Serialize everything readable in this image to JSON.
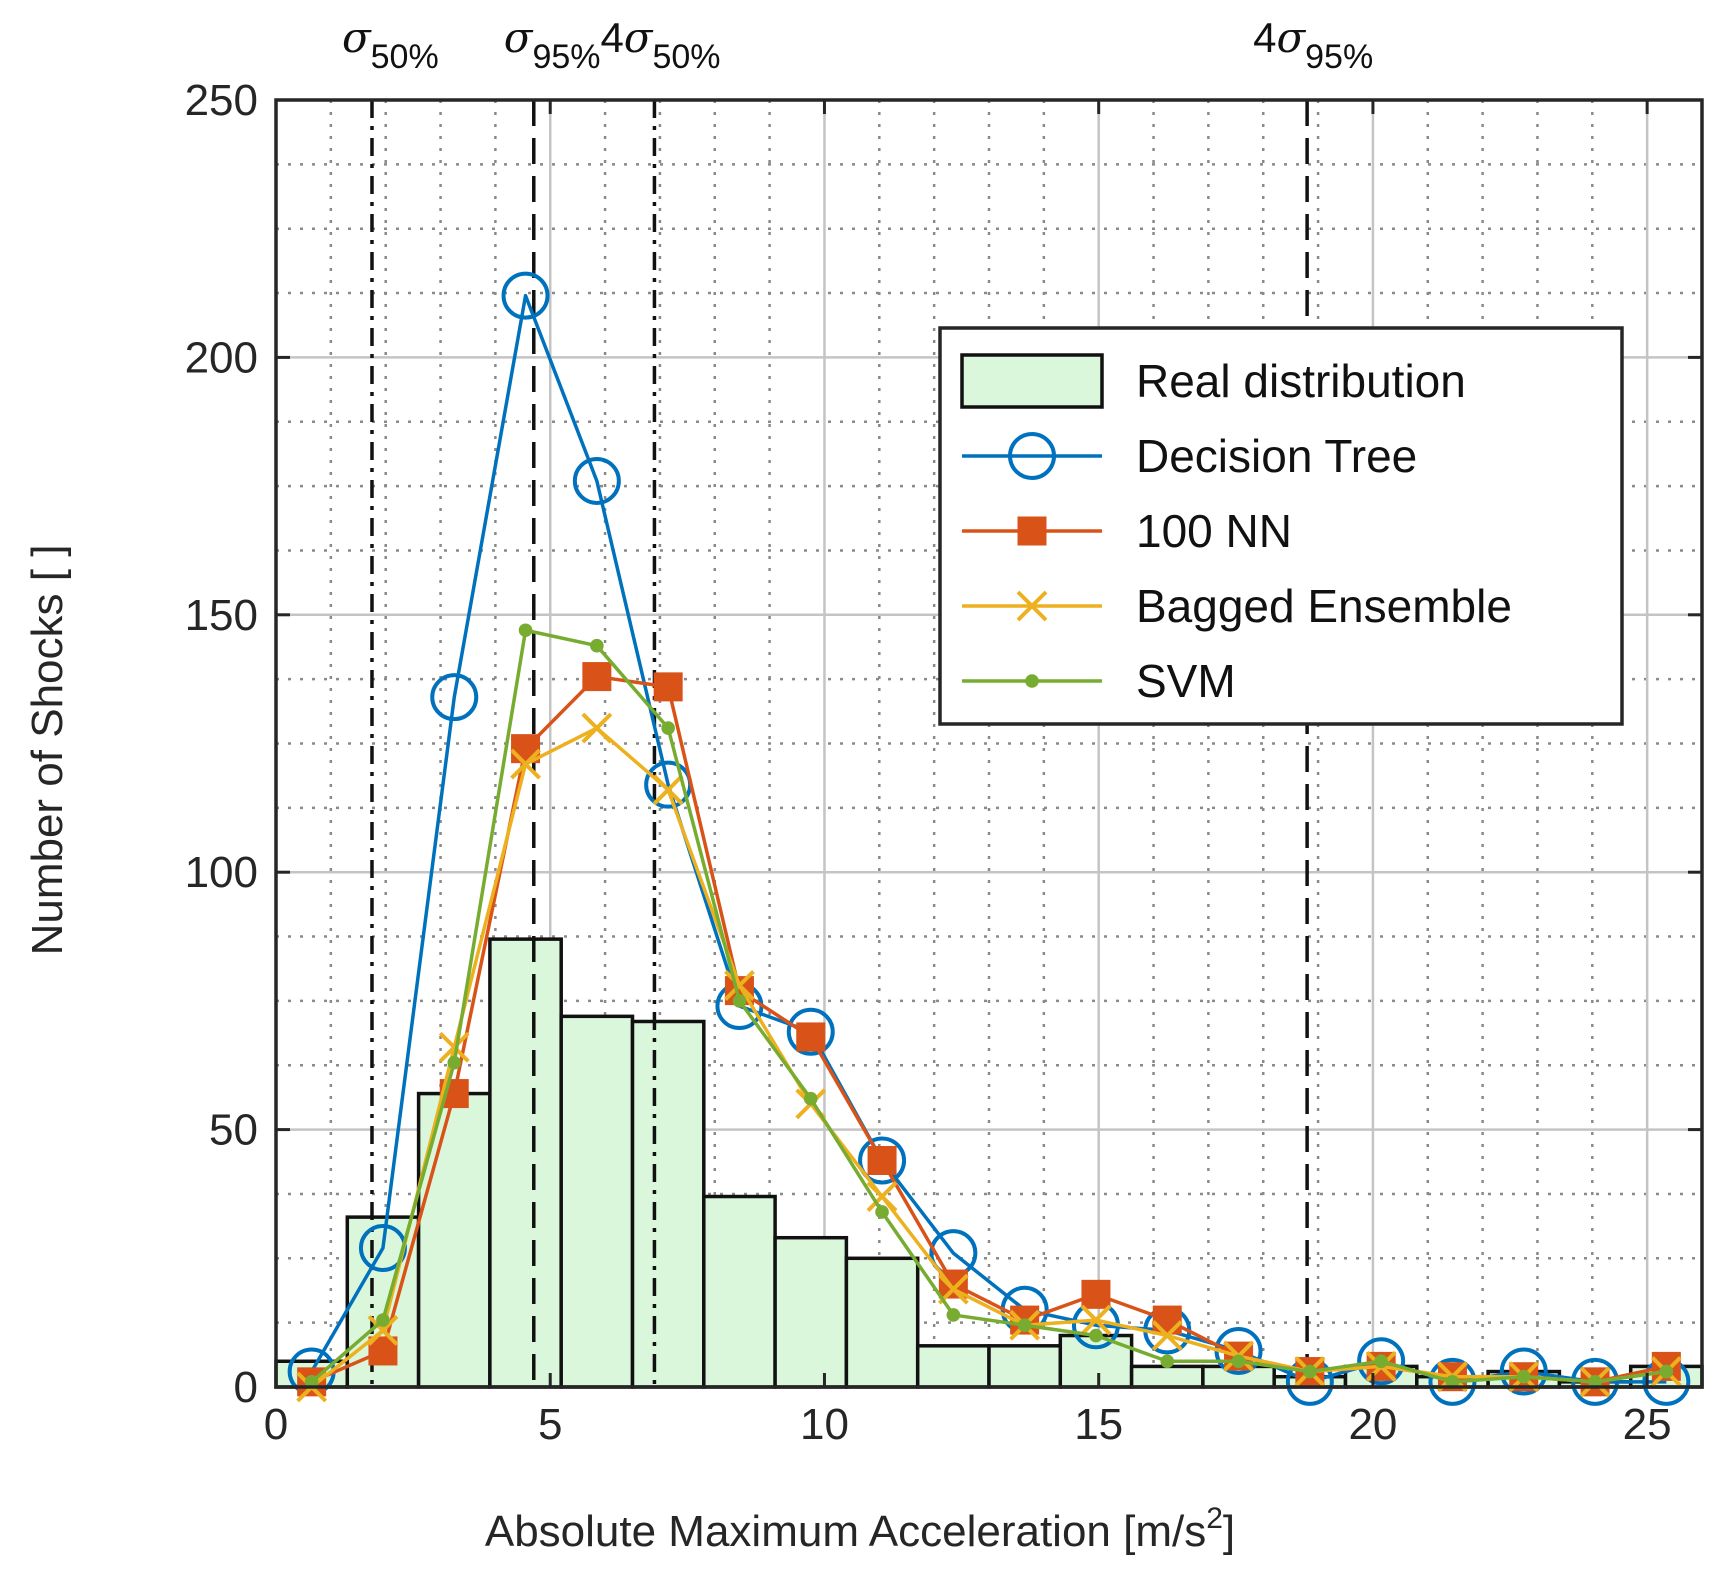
{
  "chart_data": {
    "type": "bar",
    "xlabel_main": "Absolute Maximum Acceleration [m/s",
    "xlabel_sup": "2",
    "xlabel_end": "]",
    "ylabel": "Number of Shocks [ ]",
    "xlim": [
      0,
      26
    ],
    "ylim": [
      0,
      250
    ],
    "xticks": [
      0,
      5,
      10,
      15,
      20,
      25
    ],
    "yticks": [
      0,
      50,
      100,
      150,
      200,
      250
    ],
    "xminor": [
      1,
      2,
      3,
      4,
      6,
      7,
      8,
      9,
      11,
      12,
      13,
      14,
      16,
      17,
      18,
      19,
      21,
      22,
      23,
      24
    ],
    "yminor": [
      12.5,
      25,
      37.5,
      62.5,
      75,
      87.5,
      112.5,
      125,
      137.5,
      162.5,
      175,
      187.5,
      212.5,
      225,
      237.5
    ],
    "histogram": {
      "name": "Real distribution",
      "bin_edges": [
        0,
        1.3,
        2.6,
        3.9,
        5.2,
        6.5,
        7.8,
        9.1,
        10.4,
        11.7,
        13.0,
        14.3,
        15.6,
        16.9,
        18.2,
        19.5,
        20.8,
        22.1,
        23.4,
        24.7,
        26.0
      ],
      "counts": [
        5,
        33,
        57,
        87,
        72,
        71,
        37,
        29,
        25,
        8,
        8,
        10,
        4,
        4,
        2,
        4,
        2,
        3,
        1,
        4
      ]
    },
    "x": [
      0.65,
      1.95,
      3.25,
      4.55,
      5.85,
      7.15,
      8.45,
      9.75,
      11.05,
      12.35,
      13.65,
      14.95,
      16.25,
      17.55,
      18.85,
      20.15,
      21.45,
      22.75,
      24.05,
      25.35
    ],
    "series": [
      {
        "name": "Decision Tree",
        "marker": "circle",
        "color": "#0072BD",
        "values": [
          3,
          27,
          134,
          212,
          176,
          117,
          74,
          69,
          44,
          26,
          15,
          12,
          11,
          7,
          1,
          5,
          1,
          3,
          1,
          1
        ]
      },
      {
        "name": "100 NN",
        "marker": "square",
        "color": "#D95319",
        "values": [
          1,
          7,
          57,
          124,
          138,
          136,
          77,
          68,
          44,
          20,
          13,
          18,
          13,
          6,
          3,
          4,
          2,
          2,
          1,
          4
        ]
      },
      {
        "name": "Bagged Ensemble",
        "marker": "x",
        "color": "#EDB120",
        "values": [
          0,
          11,
          66,
          121,
          128,
          116,
          78,
          55,
          37,
          19,
          12,
          13,
          10,
          6,
          3,
          4,
          2,
          2,
          1,
          3
        ]
      },
      {
        "name": "SVM",
        "marker": "dot",
        "color": "#77AC30",
        "values": [
          1,
          13,
          63,
          147,
          144,
          128,
          75,
          56,
          34,
          14,
          12,
          10,
          5,
          5,
          3,
          5,
          1,
          2,
          1,
          3
        ]
      }
    ],
    "vlines": [
      {
        "name": "sigma-50",
        "x": 1.75,
        "style": "dashdot",
        "label_base": "σ",
        "label_sub": "50%",
        "label_prefix": ""
      },
      {
        "name": "sigma-95",
        "x": 4.7,
        "style": "dashed",
        "label_base": "σ",
        "label_sub": "95%",
        "label_prefix": ""
      },
      {
        "name": "four-sigma-50",
        "x": 6.9,
        "style": "dashdot",
        "label_base": "σ",
        "label_sub": "50%",
        "label_prefix": "4"
      },
      {
        "name": "four-sigma-95",
        "x": 18.8,
        "style": "dashed",
        "label_base": "σ",
        "label_sub": "95%",
        "label_prefix": "4"
      }
    ],
    "legend": {
      "position": "top-right",
      "entries": [
        "Real distribution",
        "Decision Tree",
        "100 NN",
        "Bagged Ensemble",
        "SVM"
      ]
    },
    "hist_fill": "#DAF7DC",
    "grid": true
  }
}
